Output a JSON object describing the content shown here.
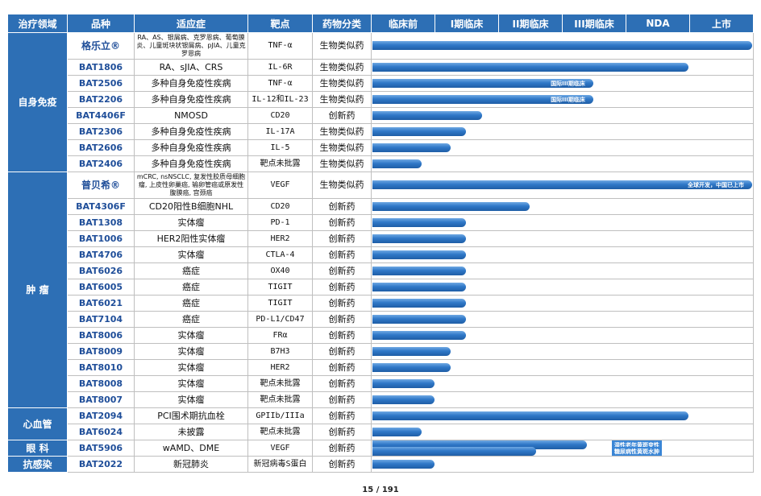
{
  "header": {
    "area": "治疗领域",
    "name": "品种",
    "indication": "适应症",
    "target": "靶点",
    "class": "药物分类",
    "preclinical": "临床前",
    "phase1": "I期临床",
    "phase2": "II期临床",
    "phase3": "III期临床",
    "nda": "NDA",
    "market": "上市"
  },
  "groups": [
    {
      "label": "自身免疫",
      "rows": [
        {
          "name": "格乐立®",
          "indication": "RA、AS、银屑病、克罗恩病、葡萄膜炎、儿童斑块状银屑病、pJIA、儿童克罗恩病",
          "target": "TNF-α",
          "class": "生物类似药",
          "progress": 6.0
        },
        {
          "name": "BAT1806",
          "indication": "RA、sJIA、CRS",
          "target": "IL-6R",
          "class": "生物类似药",
          "progress": 5.0
        },
        {
          "name": "BAT2506",
          "indication": "多种自身免疫性疾病",
          "target": "TNF-α",
          "class": "生物类似药",
          "progress": 3.5,
          "tag": "国际III期临床"
        },
        {
          "name": "BAT2206",
          "indication": "多种自身免疫性疾病",
          "target": "IL-12和IL-23",
          "class": "生物类似药",
          "progress": 3.5,
          "tag": "国际III期临床"
        },
        {
          "name": "BAT4406F",
          "indication": "NMOSD",
          "target": "CD20",
          "class": "创新药",
          "progress": 1.75
        },
        {
          "name": "BAT2306",
          "indication": "多种自身免疫性疾病",
          "target": "IL-17A",
          "class": "生物类似药",
          "progress": 1.5
        },
        {
          "name": "BAT2606",
          "indication": "多种自身免疫性疾病",
          "target": "IL-5",
          "class": "生物类似药",
          "progress": 1.25
        },
        {
          "name": "BAT2406",
          "indication": "多种自身免疫性疾病",
          "target": "靶点未批露",
          "class": "生物类似药",
          "progress": 0.8
        }
      ]
    },
    {
      "label": "肿 瘤",
      "rows": [
        {
          "name": "普贝希®",
          "indication": "mCRC, nsNSCLC, 复发性胶质母细胞瘤, 上皮性卵巢癌, 输卵管癌或原发性腹膜癌, 宫颈癌",
          "target": "VEGF",
          "class": "生物类似药",
          "progress": 6.0,
          "tag": "全球开发，中国已上市"
        },
        {
          "name": "BAT4306F",
          "indication": "CD20阳性B细胞NHL",
          "target": "CD20",
          "class": "创新药",
          "progress": 2.5
        },
        {
          "name": "BAT1308",
          "indication": "实体瘤",
          "target": "PD-1",
          "class": "创新药",
          "progress": 1.5
        },
        {
          "name": "BAT1006",
          "indication": "HER2阳性实体瘤",
          "target": "HER2",
          "class": "创新药",
          "progress": 1.5
        },
        {
          "name": "BAT4706",
          "indication": "实体瘤",
          "target": "CTLA-4",
          "class": "创新药",
          "progress": 1.5
        },
        {
          "name": "BAT6026",
          "indication": "癌症",
          "target": "OX40",
          "class": "创新药",
          "progress": 1.5
        },
        {
          "name": "BAT6005",
          "indication": "癌症",
          "target": "TIGIT",
          "class": "创新药",
          "progress": 1.5
        },
        {
          "name": "BAT6021",
          "indication": "癌症",
          "target": "TIGIT",
          "class": "创新药",
          "progress": 1.5
        },
        {
          "name": "BAT7104",
          "indication": "癌症",
          "target": "PD-L1/CD47",
          "class": "创新药",
          "progress": 1.5
        },
        {
          "name": "BAT8006",
          "indication": "实体瘤",
          "target": "FRα",
          "class": "创新药",
          "progress": 1.5
        },
        {
          "name": "BAT8009",
          "indication": "实体瘤",
          "target": "B7H3",
          "class": "创新药",
          "progress": 1.25
        },
        {
          "name": "BAT8010",
          "indication": "实体瘤",
          "target": "HER2",
          "class": "创新药",
          "progress": 1.25
        },
        {
          "name": "BAT8008",
          "indication": "实体瘤",
          "target": "靶点未批露",
          "class": "创新药",
          "progress": 1.0
        },
        {
          "name": "BAT8007",
          "indication": "实体瘤",
          "target": "靶点未批露",
          "class": "创新药",
          "progress": 1.0
        }
      ]
    },
    {
      "label": "心血管",
      "rows": [
        {
          "name": "BAT2094",
          "indication": "PCI围术期抗血栓",
          "target": "GPIIb/IIIa",
          "class": "创新药",
          "progress": 5.0
        },
        {
          "name": "BAT6024",
          "indication": "未披露",
          "target": "靶点未批露",
          "class": "创新药",
          "progress": 0.8
        }
      ]
    },
    {
      "label": "眼 科",
      "rows": [
        {
          "name": "BAT5906",
          "indication": "wAMD、DME",
          "target": "VEGF",
          "class": "创新药",
          "progress": 3.4,
          "progress2": 2.6,
          "tag": "湿性老年黄斑变性",
          "tag2": "糖尿病性黄斑水肿"
        }
      ]
    },
    {
      "label": "抗感染",
      "rows": [
        {
          "name": "BAT2022",
          "indication": "新冠肺炎",
          "target": "新冠病毒S蛋白",
          "class": "创新药",
          "progress": 1.0
        }
      ]
    }
  ],
  "colors": {
    "header_bg": "#2D6FB5",
    "name_text": "#1F4E99",
    "bar": "#2F78C8"
  },
  "footer": {
    "page": "15 / 191"
  }
}
